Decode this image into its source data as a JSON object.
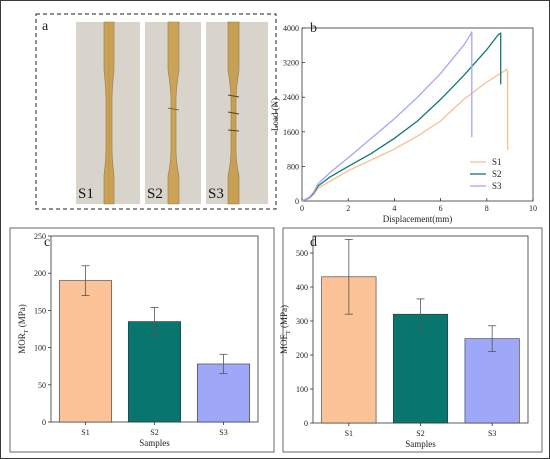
{
  "colors": {
    "S1": "#fbbf90",
    "S2": "#107a74",
    "S3": "#a3a6fb",
    "bar_S1": "#fbc397",
    "bar_S2": "#08756f",
    "bar_S3": "#9ea7f8",
    "axis": "#333333"
  },
  "panels": {
    "a": {
      "label": "a",
      "image_description": "photograph of three specimens",
      "specimens": [
        "S1",
        "S2",
        "S3"
      ]
    }
  },
  "chart_data": [
    {
      "panel": "b",
      "type": "line",
      "xlabel": "Displacement(mm)",
      "ylabel": "Load (N)",
      "xlim": [
        0,
        10
      ],
      "ylim": [
        0,
        4000
      ],
      "xticks": [
        0,
        2,
        4,
        6,
        8,
        10
      ],
      "yticks": [
        0,
        800,
        1600,
        2400,
        3200,
        4000
      ],
      "legend": "bottom-right",
      "grid": false,
      "series": [
        {
          "name": "S1",
          "x": [
            0,
            0.3,
            0.5,
            0.7,
            1.2,
            2,
            3,
            4,
            5,
            6,
            7,
            7.5,
            8,
            8.5,
            8.8,
            8.85,
            8.9,
            8.9
          ],
          "y": [
            0,
            60,
            150,
            300,
            450,
            700,
            950,
            1200,
            1500,
            1850,
            2350,
            2550,
            2750,
            2920,
            3020,
            3050,
            2980,
            1180
          ]
        },
        {
          "name": "S2",
          "x": [
            0,
            0.3,
            0.5,
            0.7,
            1.2,
            2,
            3,
            4,
            5,
            6,
            7,
            8,
            8.5,
            8.6,
            8.6
          ],
          "y": [
            0,
            70,
            180,
            350,
            550,
            800,
            1100,
            1450,
            1850,
            2350,
            2900,
            3500,
            3850,
            3880,
            2700
          ]
        },
        {
          "name": "S3",
          "x": [
            0,
            0.3,
            0.5,
            0.7,
            1.2,
            2,
            3,
            4,
            5,
            6,
            7,
            7.3,
            7.35,
            7.35
          ],
          "y": [
            0,
            80,
            200,
            400,
            650,
            1000,
            1450,
            1900,
            2400,
            2950,
            3600,
            3850,
            3920,
            1480
          ]
        }
      ]
    },
    {
      "panel": "c",
      "type": "bar",
      "xlabel": "Samples",
      "ylabel": "MOR",
      "ylabel_sub": "T",
      "ylabel_unit": " (MPa)",
      "ylim": [
        0,
        250
      ],
      "yticks": [
        0,
        50,
        100,
        150,
        200,
        250
      ],
      "categories": [
        "S1",
        "S2",
        "S3"
      ],
      "values": [
        190,
        135,
        78
      ],
      "errors": [
        20,
        19,
        13
      ]
    },
    {
      "panel": "d",
      "type": "bar",
      "xlabel": "Samples",
      "ylabel": "MOE",
      "ylabel_sub": "T",
      "ylabel_unit": " (MPa)",
      "ylim": [
        0,
        550
      ],
      "yticks": [
        0,
        100,
        200,
        300,
        400,
        500
      ],
      "categories": [
        "S1",
        "S2",
        "S3"
      ],
      "values": [
        430,
        320,
        248
      ],
      "errors": [
        110,
        45,
        38
      ]
    }
  ]
}
